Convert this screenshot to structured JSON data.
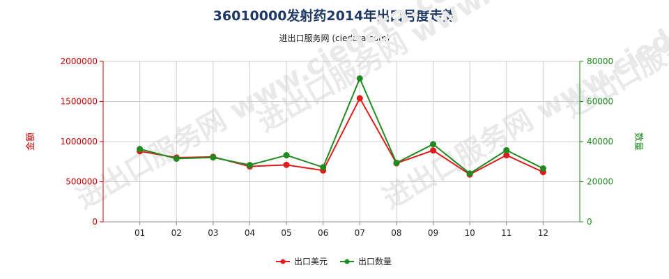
{
  "header": {
    "title": "36010000发射药2014年出口月度走势",
    "subtitle": "进出口服务网 (ciedata.com)"
  },
  "colors": {
    "series1": "#e01b1b",
    "series2": "#1f8a1f",
    "left_axis": "#cc0000",
    "right_axis": "#1f8a1f",
    "grid": "#cccccc"
  },
  "watermark": "进出口服务网 www.ciedata.com",
  "chart_data": {
    "type": "line",
    "categories": [
      "01",
      "02",
      "03",
      "04",
      "05",
      "06",
      "07",
      "08",
      "09",
      "10",
      "11",
      "12"
    ],
    "ylabel": "金额",
    "ylabel_right": "数量",
    "ylim": [
      0,
      2000000
    ],
    "ylim_right": [
      0,
      80000
    ],
    "yticks": [
      "0",
      "500000",
      "1000000",
      "1500000",
      "2000000"
    ],
    "yticks_right": [
      "0",
      "20000",
      "40000",
      "60000",
      "80000"
    ],
    "grid": true,
    "legend_position": "bottom",
    "series": [
      {
        "name": "出口美元",
        "axis": "left",
        "values": [
          880000,
          800000,
          810000,
          690000,
          710000,
          640000,
          1540000,
          730000,
          890000,
          590000,
          830000,
          620000
        ]
      },
      {
        "name": "出口数量",
        "axis": "right",
        "values": [
          36300,
          31500,
          32100,
          28300,
          33200,
          27200,
          71500,
          29400,
          38700,
          24100,
          35700,
          26600
        ]
      }
    ]
  }
}
